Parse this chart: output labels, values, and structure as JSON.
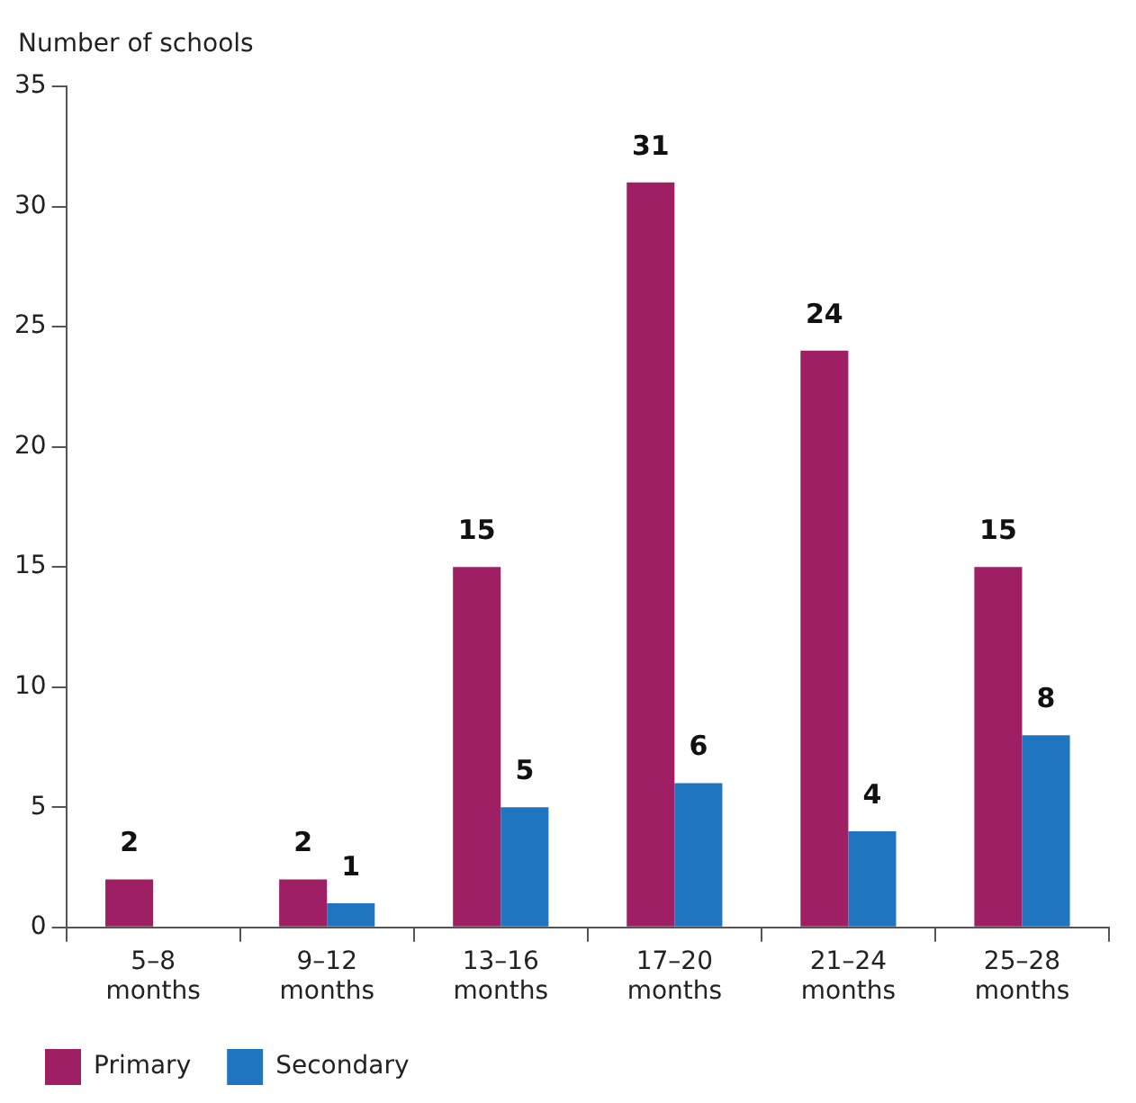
{
  "chart_data": {
    "type": "bar",
    "ylabel": "Number of schools",
    "categories": [
      "5–8 months",
      "9–12 months",
      "13–16 months",
      "17–20 months",
      "21–24 months",
      "25–28 months"
    ],
    "series": [
      {
        "name": "Primary",
        "color": "#9e1f63",
        "values": [
          2,
          2,
          15,
          31,
          24,
          15
        ]
      },
      {
        "name": "Secondary",
        "color": "#1f75c0",
        "values": [
          null,
          1,
          5,
          6,
          4,
          8
        ]
      }
    ],
    "ylim": [
      0,
      35
    ],
    "yticks": [
      0,
      5,
      10,
      15,
      20,
      25,
      30,
      35
    ],
    "grid": false,
    "legend": "bottom left",
    "data_labels": true
  }
}
